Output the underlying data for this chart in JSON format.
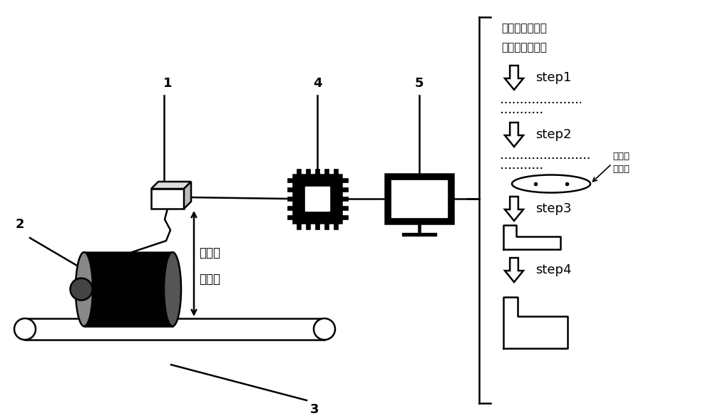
{
  "bg_color": "#ffffff",
  "label_1": "1",
  "label_2": "2",
  "label_3": "3",
  "label_4": "4",
  "label_5": "5",
  "text_distance_value": "距离值",
  "text_reference_plane": "基准面",
  "text_step1": "step1",
  "text_step2": "step2",
  "text_step3": "step3",
  "text_step4": "step4",
  "text_data_title_line1": "连续的被测点距",
  "text_data_title_line2": "基准面距离数据",
  "text_rotation_axis_line1": "旋转轴",
  "text_rotation_axis_line2": "起止点",
  "line_color": "#000000",
  "lw": 1.8
}
